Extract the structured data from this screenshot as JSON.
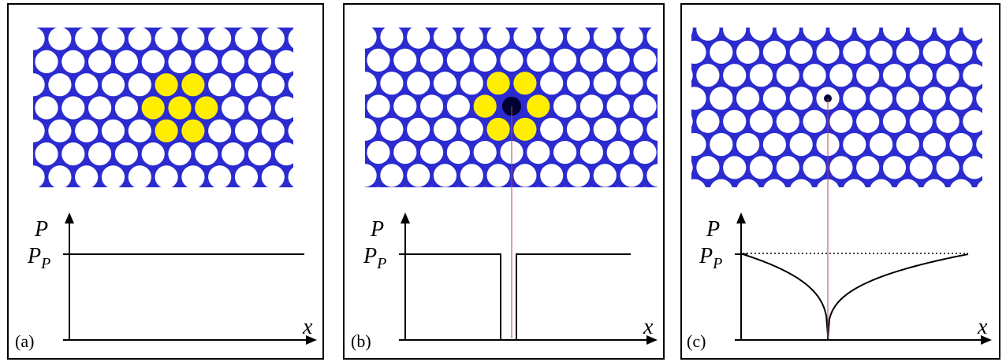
{
  "figure": {
    "colors": {
      "lattice_stroke": "#2b2bd0",
      "hole_fill": "#ffffff",
      "highlight_fill": "#ffee00",
      "defect_fill": "#000033",
      "guide_line": "#c24040",
      "curve": "#000000"
    },
    "panels": [
      {
        "label": "(a)",
        "y_axis_label": "P",
        "x_axis_label": "x",
        "level_label_main": "P",
        "level_label_sub": "P",
        "defect": "none",
        "profile": "flat"
      },
      {
        "label": "(b)",
        "y_axis_label": "P",
        "x_axis_label": "x",
        "level_label_main": "P",
        "level_label_sub": "P",
        "defect": "vacancy",
        "profile": "notch"
      },
      {
        "label": "(c)",
        "y_axis_label": "P",
        "x_axis_label": "x",
        "level_label_main": "P",
        "level_label_sub": "P",
        "defect": "interstitial",
        "profile": "cusp"
      }
    ]
  }
}
